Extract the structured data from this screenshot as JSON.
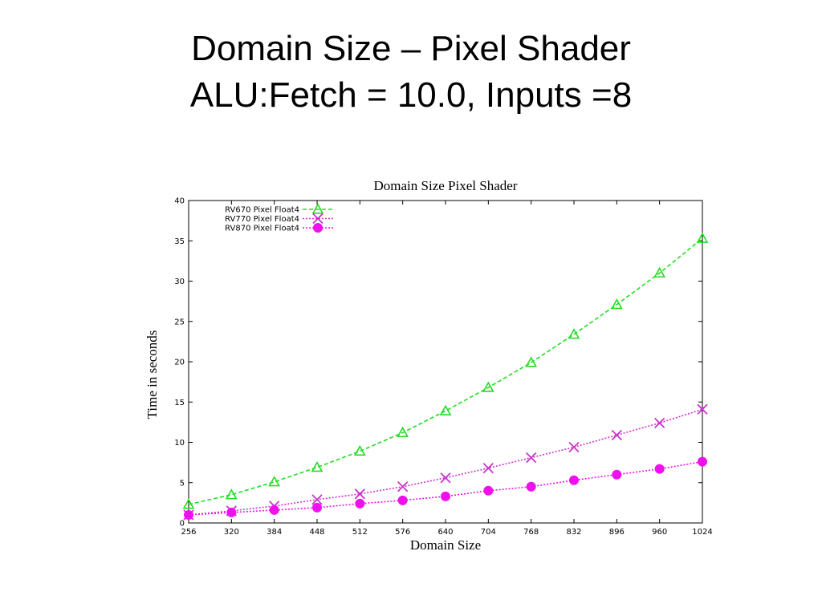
{
  "slide": {
    "title_line1": "Domain Size – Pixel Shader",
    "title_line2": "ALU:Fetch = 10.0, Inputs =8"
  },
  "chart_data": {
    "type": "line",
    "title": "Domain Size Pixel Shader",
    "xlabel": "Domain Size",
    "ylabel": "Time in seconds",
    "categories": [
      "256",
      "320",
      "384",
      "448",
      "512",
      "576",
      "640",
      "704",
      "768",
      "832",
      "896",
      "960",
      "1024"
    ],
    "x": [
      256,
      320,
      384,
      448,
      512,
      576,
      640,
      704,
      768,
      832,
      896,
      960,
      1024
    ],
    "xlim": [
      256,
      1024
    ],
    "ylim": [
      0,
      40
    ],
    "yticks": [
      "0",
      "5",
      "10",
      "15",
      "20",
      "25",
      "30",
      "35",
      "40"
    ],
    "grid": false,
    "legend_position": "top-left",
    "series": [
      {
        "name": "RV670 Pixel Float4",
        "color": "#22dd22",
        "marker": "triangle",
        "line_style": "dashed",
        "values": [
          2.3,
          3.5,
          5.1,
          6.9,
          8.9,
          11.2,
          13.9,
          16.8,
          19.9,
          23.4,
          27.1,
          31.0,
          35.3
        ]
      },
      {
        "name": "RV770 Pixel Float4",
        "color": "#cc33cc",
        "marker": "x",
        "line_style": "dotted",
        "values": [
          1.0,
          1.5,
          2.1,
          2.9,
          3.6,
          4.5,
          5.6,
          6.8,
          8.1,
          9.4,
          10.9,
          12.4,
          14.1
        ]
      },
      {
        "name": "RV870 Pixel Float4",
        "color": "#ee11ee",
        "marker": "circle",
        "line_style": "dotted",
        "values": [
          1.0,
          1.3,
          1.6,
          1.9,
          2.4,
          2.8,
          3.3,
          4.0,
          4.5,
          5.3,
          6.0,
          6.7,
          7.6
        ]
      }
    ]
  }
}
